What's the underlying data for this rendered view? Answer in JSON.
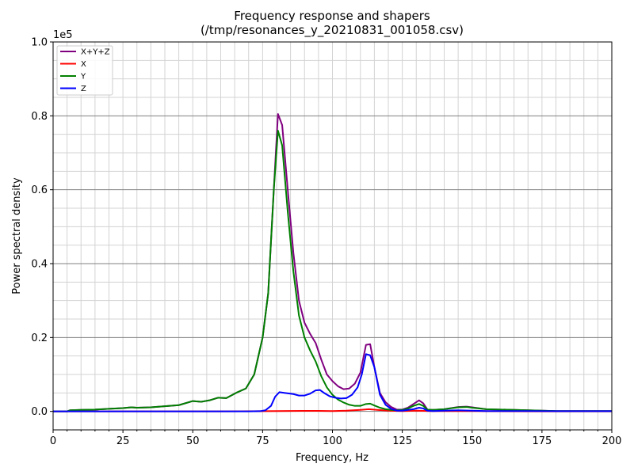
{
  "chart_data": {
    "type": "line",
    "title": "Frequency response and shapers",
    "subtitle": "(/tmp/resonances_y_20210831_001058.csv)",
    "xlabel": "Frequency, Hz",
    "ylabel": "Power spectral density",
    "y_offset_label": "1e5",
    "xlim": [
      0,
      200
    ],
    "ylim": [
      -0.05,
      1.0
    ],
    "x_ticks": [
      0,
      25,
      50,
      75,
      100,
      125,
      150,
      175,
      200
    ],
    "y_ticks": [
      0.0,
      0.2,
      0.4,
      0.6,
      0.8,
      1.0
    ],
    "x_tick_labels": [
      "0",
      "25",
      "50",
      "75",
      "100",
      "125",
      "150",
      "175",
      "200"
    ],
    "y_tick_labels": [
      "0.0",
      "0.2",
      "0.4",
      "0.6",
      "0.8",
      "1.0"
    ],
    "grid": true,
    "legend_position": "top-left",
    "series": [
      {
        "name": "X+Y+Z",
        "color": "#800080",
        "points": [
          [
            0,
            0
          ],
          [
            5,
            0
          ],
          [
            6,
            0.003
          ],
          [
            10,
            0.004
          ],
          [
            15,
            0.005
          ],
          [
            20,
            0.007
          ],
          [
            25,
            0.009
          ],
          [
            28,
            0.011
          ],
          [
            30,
            0.01
          ],
          [
            35,
            0.011
          ],
          [
            40,
            0.014
          ],
          [
            45,
            0.017
          ],
          [
            50,
            0.028
          ],
          [
            53,
            0.026
          ],
          [
            56,
            0.03
          ],
          [
            59,
            0.037
          ],
          [
            62,
            0.036
          ],
          [
            66,
            0.052
          ],
          [
            69,
            0.062
          ],
          [
            72,
            0.1
          ],
          [
            75,
            0.2
          ],
          [
            77,
            0.32
          ],
          [
            79,
            0.6
          ],
          [
            80.5,
            0.805
          ],
          [
            82,
            0.775
          ],
          [
            84,
            0.6
          ],
          [
            86,
            0.43
          ],
          [
            88,
            0.3
          ],
          [
            90,
            0.24
          ],
          [
            92,
            0.21
          ],
          [
            94,
            0.185
          ],
          [
            96,
            0.14
          ],
          [
            98,
            0.1
          ],
          [
            100,
            0.082
          ],
          [
            102,
            0.068
          ],
          [
            104,
            0.06
          ],
          [
            106,
            0.062
          ],
          [
            108,
            0.075
          ],
          [
            110,
            0.105
          ],
          [
            112,
            0.18
          ],
          [
            113.5,
            0.182
          ],
          [
            115,
            0.12
          ],
          [
            117,
            0.05
          ],
          [
            119,
            0.025
          ],
          [
            121,
            0.012
          ],
          [
            123,
            0.005
          ],
          [
            125,
            0.005
          ],
          [
            127,
            0.01
          ],
          [
            129,
            0.02
          ],
          [
            131,
            0.03
          ],
          [
            132.5,
            0.022
          ],
          [
            134,
            0.005
          ],
          [
            136,
            0.004
          ],
          [
            140,
            0.006
          ],
          [
            145,
            0.012
          ],
          [
            148,
            0.013
          ],
          [
            150,
            0.011
          ],
          [
            155,
            0.006
          ],
          [
            160,
            0.005
          ],
          [
            165,
            0.004
          ],
          [
            170,
            0.003
          ],
          [
            175,
            0.002
          ],
          [
            180,
            0.001
          ],
          [
            190,
            0.001
          ],
          [
            200,
            0.001
          ]
        ]
      },
      {
        "name": "X",
        "color": "#ff0000",
        "points": [
          [
            0,
            0
          ],
          [
            20,
            0
          ],
          [
            40,
            0
          ],
          [
            60,
            0
          ],
          [
            75,
            0.0005
          ],
          [
            80,
            0.001
          ],
          [
            90,
            0.0015
          ],
          [
            95,
            0.0015
          ],
          [
            100,
            0.001
          ],
          [
            105,
            0.002
          ],
          [
            110,
            0.004
          ],
          [
            113,
            0.006
          ],
          [
            116,
            0.004
          ],
          [
            120,
            0.002
          ],
          [
            125,
            0.001
          ],
          [
            130,
            0.002
          ],
          [
            135,
            0.001
          ],
          [
            140,
            0.001
          ],
          [
            150,
            0.001
          ],
          [
            160,
            0.0005
          ],
          [
            180,
            0
          ],
          [
            200,
            0
          ]
        ]
      },
      {
        "name": "Y",
        "color": "#008000",
        "points": [
          [
            0,
            0
          ],
          [
            5,
            0
          ],
          [
            6,
            0.003
          ],
          [
            10,
            0.004
          ],
          [
            15,
            0.005
          ],
          [
            20,
            0.007
          ],
          [
            25,
            0.009
          ],
          [
            28,
            0.011
          ],
          [
            30,
            0.01
          ],
          [
            35,
            0.011
          ],
          [
            40,
            0.014
          ],
          [
            45,
            0.017
          ],
          [
            50,
            0.028
          ],
          [
            53,
            0.026
          ],
          [
            56,
            0.03
          ],
          [
            59,
            0.037
          ],
          [
            62,
            0.036
          ],
          [
            66,
            0.052
          ],
          [
            69,
            0.062
          ],
          [
            72,
            0.1
          ],
          [
            75,
            0.2
          ],
          [
            77,
            0.32
          ],
          [
            79,
            0.6
          ],
          [
            80.5,
            0.76
          ],
          [
            82,
            0.72
          ],
          [
            84,
            0.54
          ],
          [
            86,
            0.38
          ],
          [
            88,
            0.26
          ],
          [
            90,
            0.2
          ],
          [
            92,
            0.165
          ],
          [
            94,
            0.135
          ],
          [
            96,
            0.095
          ],
          [
            98,
            0.065
          ],
          [
            100,
            0.045
          ],
          [
            102,
            0.032
          ],
          [
            104,
            0.024
          ],
          [
            106,
            0.018
          ],
          [
            108,
            0.015
          ],
          [
            110,
            0.015
          ],
          [
            112,
            0.02
          ],
          [
            113.5,
            0.021
          ],
          [
            115,
            0.016
          ],
          [
            117,
            0.01
          ],
          [
            119,
            0.006
          ],
          [
            121,
            0.004
          ],
          [
            123,
            0.003
          ],
          [
            125,
            0.004
          ],
          [
            127,
            0.008
          ],
          [
            129,
            0.015
          ],
          [
            131,
            0.02
          ],
          [
            132.5,
            0.015
          ],
          [
            134,
            0.005
          ],
          [
            136,
            0.004
          ],
          [
            140,
            0.006
          ],
          [
            145,
            0.011
          ],
          [
            148,
            0.012
          ],
          [
            150,
            0.01
          ],
          [
            155,
            0.006
          ],
          [
            160,
            0.005
          ],
          [
            165,
            0.004
          ],
          [
            170,
            0.003
          ],
          [
            175,
            0.002
          ],
          [
            180,
            0.001
          ],
          [
            190,
            0.001
          ],
          [
            200,
            0.001
          ]
        ]
      },
      {
        "name": "Z",
        "color": "#0000ff",
        "points": [
          [
            0,
            0
          ],
          [
            5,
            0
          ],
          [
            10,
            0
          ],
          [
            20,
            0
          ],
          [
            30,
            0
          ],
          [
            40,
            0
          ],
          [
            50,
            0
          ],
          [
            60,
            0
          ],
          [
            70,
            0
          ],
          [
            74,
            0.0005
          ],
          [
            76,
            0.003
          ],
          [
            78,
            0.015
          ],
          [
            79.5,
            0.04
          ],
          [
            81,
            0.052
          ],
          [
            83,
            0.05
          ],
          [
            86,
            0.047
          ],
          [
            88,
            0.043
          ],
          [
            90,
            0.043
          ],
          [
            92,
            0.048
          ],
          [
            94,
            0.057
          ],
          [
            95.5,
            0.058
          ],
          [
            97,
            0.05
          ],
          [
            99,
            0.041
          ],
          [
            101,
            0.037
          ],
          [
            103,
            0.035
          ],
          [
            105,
            0.036
          ],
          [
            107,
            0.045
          ],
          [
            109,
            0.065
          ],
          [
            110.5,
            0.1
          ],
          [
            112,
            0.155
          ],
          [
            113.5,
            0.152
          ],
          [
            115,
            0.12
          ],
          [
            117,
            0.045
          ],
          [
            119,
            0.018
          ],
          [
            121,
            0.007
          ],
          [
            123,
            0.002
          ],
          [
            125,
            0.002
          ],
          [
            127,
            0.004
          ],
          [
            129,
            0.006
          ],
          [
            131,
            0.01
          ],
          [
            132.5,
            0.008
          ],
          [
            134,
            0.002
          ],
          [
            136,
            0.001
          ],
          [
            140,
            0.002
          ],
          [
            145,
            0.003
          ],
          [
            150,
            0.002
          ],
          [
            155,
            0.001
          ],
          [
            160,
            0.001
          ],
          [
            170,
            0.001
          ],
          [
            180,
            0.0005
          ],
          [
            190,
            0.0005
          ],
          [
            200,
            0.0005
          ]
        ]
      }
    ]
  }
}
